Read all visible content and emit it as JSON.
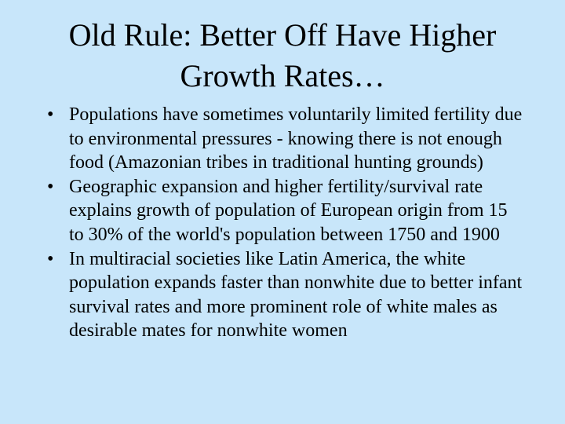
{
  "slide": {
    "title": "Old Rule: Better Off Have Higher Growth Rates…",
    "bullets": [
      "Populations have sometimes voluntarily limited fertility due to environmental pressures  - knowing there is not enough food (Amazonian tribes in traditional hunting grounds)",
      "Geographic expansion and higher fertility/survival rate explains growth of population of European origin from 15 to 30% of the world's population between 1750 and 1900",
      "In multiracial societies like Latin America, the white population expands faster than nonwhite due to better infant survival rates and more prominent role of white males as desirable mates for nonwhite women"
    ]
  }
}
